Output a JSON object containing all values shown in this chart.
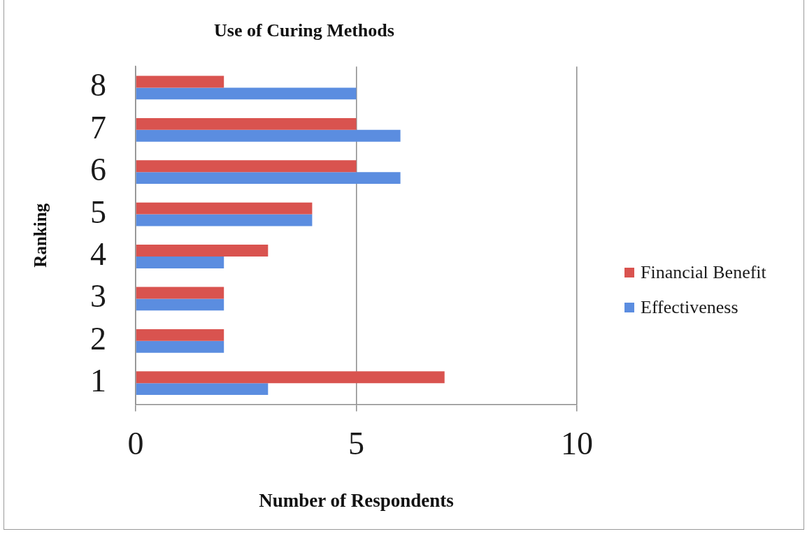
{
  "chart_data": {
    "type": "bar",
    "orientation": "horizontal",
    "title": "Use of Curing Methods",
    "xlabel": "Number of Respondents",
    "ylabel": "Ranking",
    "categories": [
      "8",
      "7",
      "6",
      "5",
      "4",
      "3",
      "2",
      "1"
    ],
    "series": [
      {
        "name": "Financial Benefit",
        "color": "#d9534f",
        "values": [
          2,
          5,
          5,
          4,
          3,
          2,
          2,
          7
        ]
      },
      {
        "name": "Effectiveness",
        "color": "#5b8de0",
        "values": [
          5,
          6,
          6,
          4,
          2,
          2,
          2,
          3
        ]
      }
    ],
    "xlim": [
      0,
      10
    ],
    "xticks": [
      0,
      5,
      10
    ],
    "grid": "x",
    "legend": "right"
  }
}
